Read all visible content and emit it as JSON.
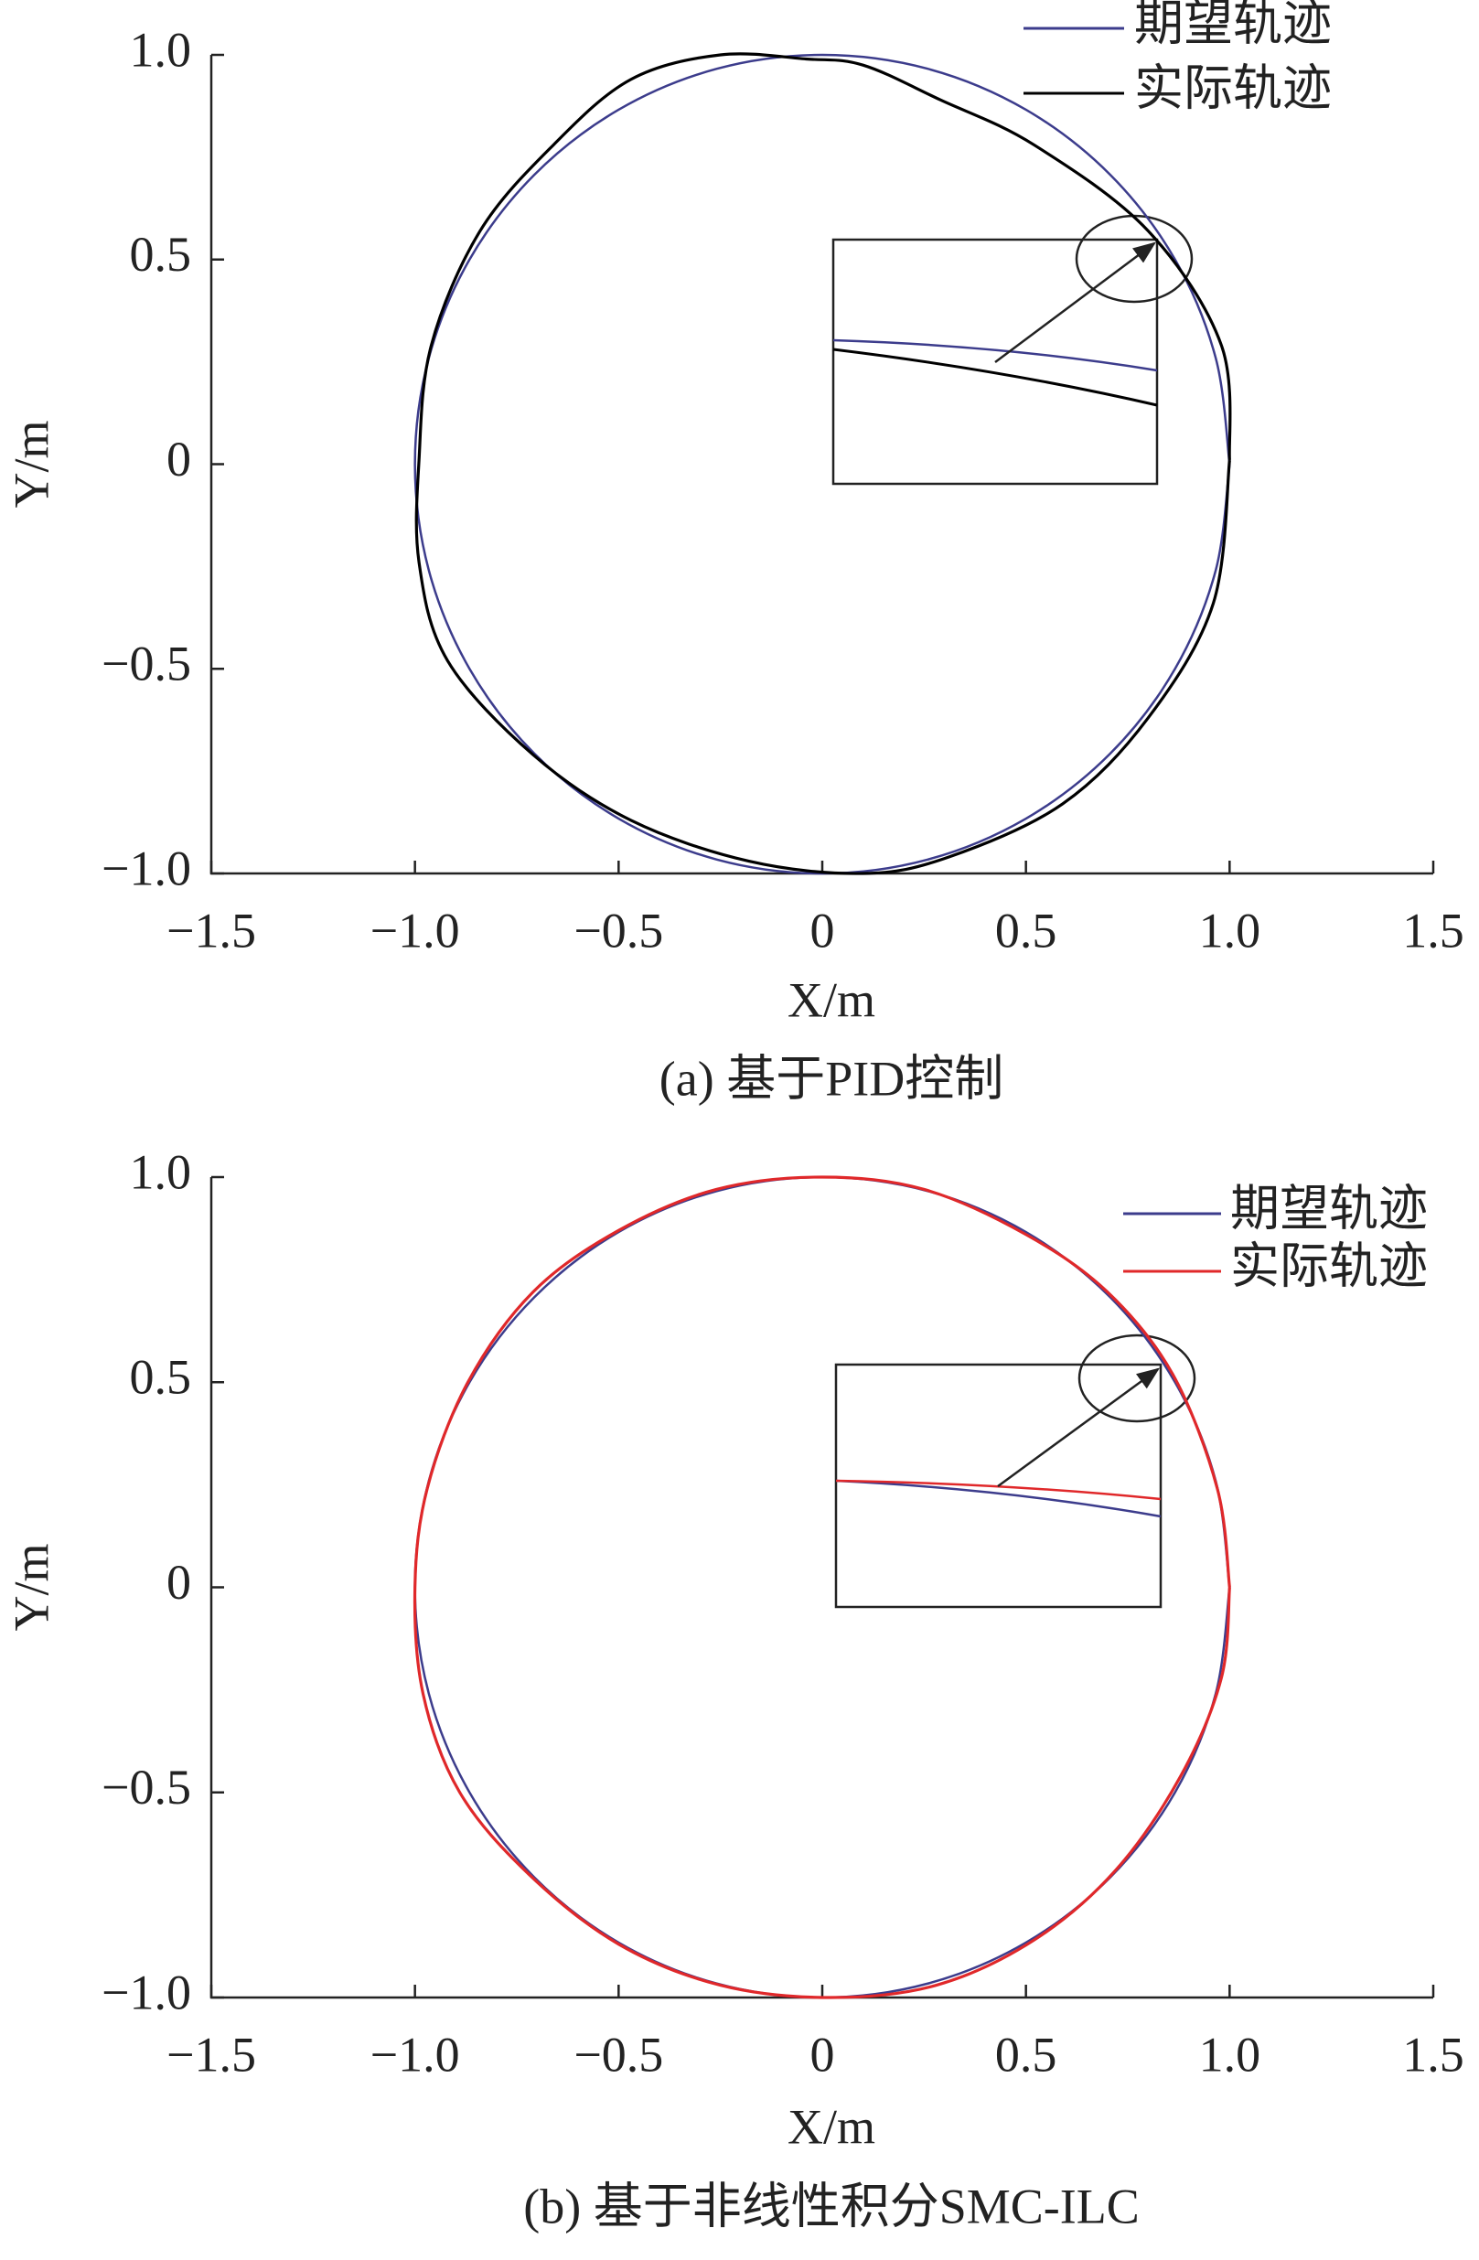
{
  "chart_data": [
    {
      "type": "line",
      "xlim": [
        -1.5,
        1.5
      ],
      "ylim": [
        -1,
        1
      ],
      "xticks": [
        {
          "value": -1.5,
          "label": "−1.5"
        },
        {
          "value": -1,
          "label": "−1.0"
        },
        {
          "value": -0.5,
          "label": "−0.5"
        },
        0,
        0.5,
        {
          "value": 1,
          "label": "1.0"
        },
        1.5
      ],
      "yticks": [
        {
          "value": -1,
          "label": "−1.0"
        },
        {
          "value": -0.5,
          "label": "−0.5"
        },
        0,
        0.5,
        {
          "value": 1,
          "label": "1.0"
        }
      ],
      "xlabel": "X/m",
      "ylabel": "Y/m",
      "caption": "(a)  基于PID控制",
      "series": [
        {
          "name": "期望轨迹",
          "color": "#3c3c8c",
          "x": [
            1,
            0.966,
            0.866,
            0.707,
            0.5,
            0.259,
            0,
            -0.259,
            -0.5,
            -0.707,
            -0.866,
            -0.966,
            -1,
            -0.966,
            -0.866,
            -0.707,
            -0.5,
            -0.259,
            0,
            0.259,
            0.5,
            0.707,
            0.866,
            0.966,
            1
          ],
          "values": [
            0,
            0.259,
            0.5,
            0.707,
            0.866,
            0.966,
            1,
            0.966,
            0.866,
            0.707,
            0.5,
            0.259,
            0,
            -0.259,
            -0.5,
            -0.707,
            -0.866,
            -0.966,
            -1,
            -0.966,
            -0.866,
            -0.707,
            -0.5,
            -0.259,
            0
          ]
        },
        {
          "name": "实际轨迹",
          "color": "#000000",
          "x": [
            1.0,
            0.98,
            0.8,
            0.52,
            0.29,
            0.1,
            -0.04,
            -0.25,
            -0.47,
            -0.66,
            -0.84,
            -0.96,
            -0.99,
            -0.99,
            -0.92,
            -0.71,
            -0.47,
            -0.18,
            0.1,
            0.31,
            0.59,
            0.8,
            0.96,
            1.0
          ],
          "values": [
            0.01,
            0.29,
            0.57,
            0.78,
            0.89,
            0.975,
            0.99,
            1.0,
            0.94,
            0.78,
            0.57,
            0.29,
            0.01,
            -0.24,
            -0.48,
            -0.71,
            -0.87,
            -0.97,
            -1.0,
            -0.96,
            -0.83,
            -0.62,
            -0.34,
            0.01
          ]
        }
      ]
    },
    {
      "type": "line",
      "xlim": [
        -1.5,
        1.5
      ],
      "ylim": [
        -1,
        1
      ],
      "xticks": [
        {
          "value": -1.5,
          "label": "−1.5"
        },
        {
          "value": -1,
          "label": "−1.0"
        },
        {
          "value": -0.5,
          "label": "−0.5"
        },
        0,
        0.5,
        {
          "value": 1,
          "label": "1.0"
        },
        1.5
      ],
      "yticks": [
        {
          "value": -1,
          "label": "−1.0"
        },
        {
          "value": -0.5,
          "label": "−0.5"
        },
        0,
        0.5,
        {
          "value": 1,
          "label": "1.0"
        }
      ],
      "xlabel": "X/m",
      "ylabel": "Y/m",
      "caption": "(b)  基于非线性积分SMC-ILC",
      "series": [
        {
          "name": "期望轨迹",
          "color": "#3c3c8c",
          "x": [
            1,
            0.966,
            0.866,
            0.707,
            0.5,
            0.259,
            0,
            -0.259,
            -0.5,
            -0.707,
            -0.866,
            -0.966,
            -1,
            -0.966,
            -0.866,
            -0.707,
            -0.5,
            -0.259,
            0,
            0.259,
            0.5,
            0.707,
            0.866,
            0.966,
            1
          ],
          "values": [
            0,
            0.259,
            0.5,
            0.707,
            0.866,
            0.966,
            1,
            0.966,
            0.866,
            0.707,
            0.5,
            0.259,
            0,
            -0.259,
            -0.5,
            -0.707,
            -0.866,
            -0.966,
            -1,
            -0.966,
            -0.866,
            -0.707,
            -0.5,
            -0.259,
            0
          ]
        },
        {
          "name": "实际轨迹",
          "color": "#e0282a",
          "x": [
            1.0,
            0.97,
            0.86,
            0.7,
            0.5,
            0.25,
            0,
            -0.26,
            -0.5,
            -0.71,
            -0.87,
            -0.97,
            -1.0,
            -0.98,
            -0.89,
            -0.72,
            -0.5,
            -0.25,
            0.02,
            0.28,
            0.52,
            0.72,
            0.88,
            0.98,
            1.0
          ],
          "values": [
            0,
            0.24,
            0.52,
            0.72,
            0.86,
            0.97,
            1.0,
            0.97,
            0.87,
            0.72,
            0.5,
            0.24,
            0,
            -0.26,
            -0.5,
            -0.7,
            -0.87,
            -0.97,
            -1.0,
            -0.97,
            -0.86,
            -0.69,
            -0.46,
            -0.22,
            0
          ]
        }
      ]
    }
  ]
}
